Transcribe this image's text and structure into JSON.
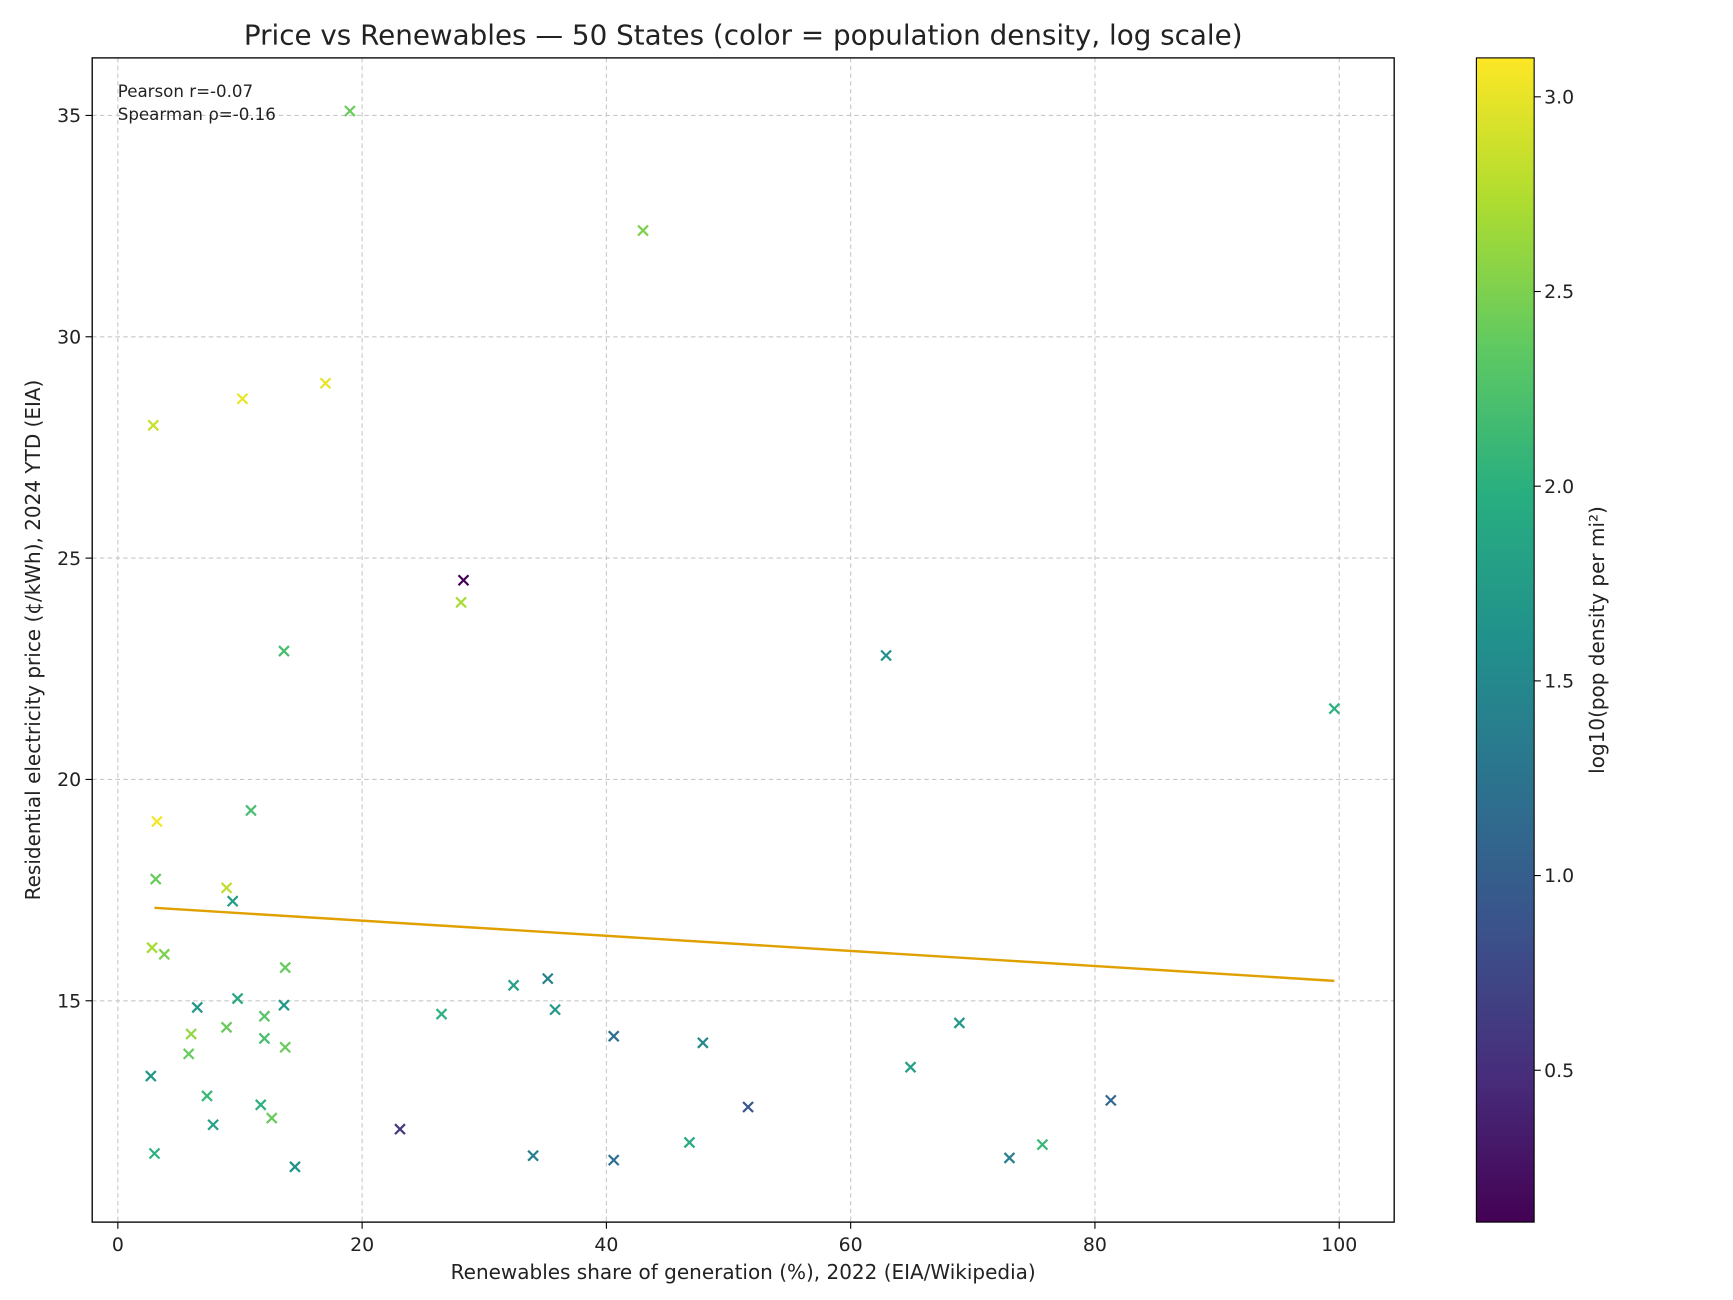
{
  "chart_data": {
    "type": "scatter",
    "title": "Price vs Renewables — 50 States (color = population density, log scale)",
    "xlabel": "Renewables share of generation (%), 2022 (EIA/Wikipedia)",
    "ylabel": "Residential electricity price (¢/kWh), 2024 YTD (EIA)",
    "xlim": [
      -2.1,
      104.5
    ],
    "ylim": [
      10.0,
      36.3
    ],
    "xticks": [
      0,
      20,
      40,
      60,
      80,
      100
    ],
    "yticks": [
      15,
      20,
      25,
      30,
      35
    ],
    "grid": true,
    "marker": "x",
    "colorbar": {
      "label": "log10(pop density per mi²)",
      "colormap": "viridis",
      "range": [
        0.11,
        3.1
      ],
      "ticks": [
        0.5,
        1.0,
        1.5,
        2.0,
        2.5,
        3.0
      ]
    },
    "annotations": [
      "Pearson r=-0.07",
      "Spearman ρ=-0.16"
    ],
    "trendline": {
      "color": "#e0a000",
      "points": [
        [
          3.0,
          17.1
        ],
        [
          99.6,
          15.45
        ]
      ]
    },
    "points": [
      {
        "x": 19.0,
        "y": 35.1,
        "c": 2.4
      },
      {
        "x": 43.0,
        "y": 32.4,
        "c": 2.5
      },
      {
        "x": 17.0,
        "y": 28.95,
        "c": 3.0
      },
      {
        "x": 10.2,
        "y": 28.6,
        "c": 3.0
      },
      {
        "x": 2.9,
        "y": 28.0,
        "c": 2.85
      },
      {
        "x": 28.3,
        "y": 24.5,
        "c": 0.1
      },
      {
        "x": 28.1,
        "y": 24.0,
        "c": 2.7
      },
      {
        "x": 13.6,
        "y": 22.9,
        "c": 2.2
      },
      {
        "x": 62.9,
        "y": 22.8,
        "c": 1.6
      },
      {
        "x": 99.6,
        "y": 21.6,
        "c": 2.0
      },
      {
        "x": 10.9,
        "y": 19.3,
        "c": 2.2
      },
      {
        "x": 3.2,
        "y": 19.05,
        "c": 3.05
      },
      {
        "x": 3.1,
        "y": 17.75,
        "c": 2.4
      },
      {
        "x": 8.9,
        "y": 17.55,
        "c": 2.8
      },
      {
        "x": 9.4,
        "y": 17.25,
        "c": 1.8
      },
      {
        "x": 2.8,
        "y": 16.2,
        "c": 2.7
      },
      {
        "x": 3.8,
        "y": 16.05,
        "c": 2.5
      },
      {
        "x": 13.7,
        "y": 15.75,
        "c": 2.4
      },
      {
        "x": 32.4,
        "y": 15.35,
        "c": 1.8
      },
      {
        "x": 35.2,
        "y": 15.5,
        "c": 1.4
      },
      {
        "x": 9.8,
        "y": 15.05,
        "c": 1.9
      },
      {
        "x": 6.5,
        "y": 14.85,
        "c": 1.7
      },
      {
        "x": 13.6,
        "y": 14.9,
        "c": 1.7
      },
      {
        "x": 35.8,
        "y": 14.8,
        "c": 1.7
      },
      {
        "x": 26.5,
        "y": 14.7,
        "c": 2.0
      },
      {
        "x": 12.0,
        "y": 14.65,
        "c": 2.3
      },
      {
        "x": 8.9,
        "y": 14.4,
        "c": 2.4
      },
      {
        "x": 68.9,
        "y": 14.5,
        "c": 1.7
      },
      {
        "x": 40.6,
        "y": 14.2,
        "c": 1.2
      },
      {
        "x": 6.0,
        "y": 14.25,
        "c": 2.6
      },
      {
        "x": 12.0,
        "y": 14.15,
        "c": 2.2
      },
      {
        "x": 47.9,
        "y": 14.05,
        "c": 1.5
      },
      {
        "x": 13.7,
        "y": 13.95,
        "c": 2.4
      },
      {
        "x": 5.8,
        "y": 13.8,
        "c": 2.4
      },
      {
        "x": 64.9,
        "y": 13.5,
        "c": 1.8
      },
      {
        "x": 2.7,
        "y": 13.3,
        "c": 1.7
      },
      {
        "x": 7.3,
        "y": 12.85,
        "c": 2.1
      },
      {
        "x": 11.7,
        "y": 12.65,
        "c": 2.0
      },
      {
        "x": 81.3,
        "y": 12.75,
        "c": 1.1
      },
      {
        "x": 51.6,
        "y": 12.6,
        "c": 0.9
      },
      {
        "x": 12.6,
        "y": 12.35,
        "c": 2.4
      },
      {
        "x": 7.8,
        "y": 12.2,
        "c": 1.8
      },
      {
        "x": 23.1,
        "y": 12.1,
        "c": 0.6
      },
      {
        "x": 46.8,
        "y": 11.8,
        "c": 1.9
      },
      {
        "x": 75.7,
        "y": 11.75,
        "c": 2.1
      },
      {
        "x": 3.0,
        "y": 11.55,
        "c": 2.0
      },
      {
        "x": 34.0,
        "y": 11.5,
        "c": 1.4
      },
      {
        "x": 73.0,
        "y": 11.45,
        "c": 1.4
      },
      {
        "x": 40.6,
        "y": 11.4,
        "c": 1.2
      },
      {
        "x": 14.5,
        "y": 11.25,
        "c": 1.6
      }
    ]
  }
}
